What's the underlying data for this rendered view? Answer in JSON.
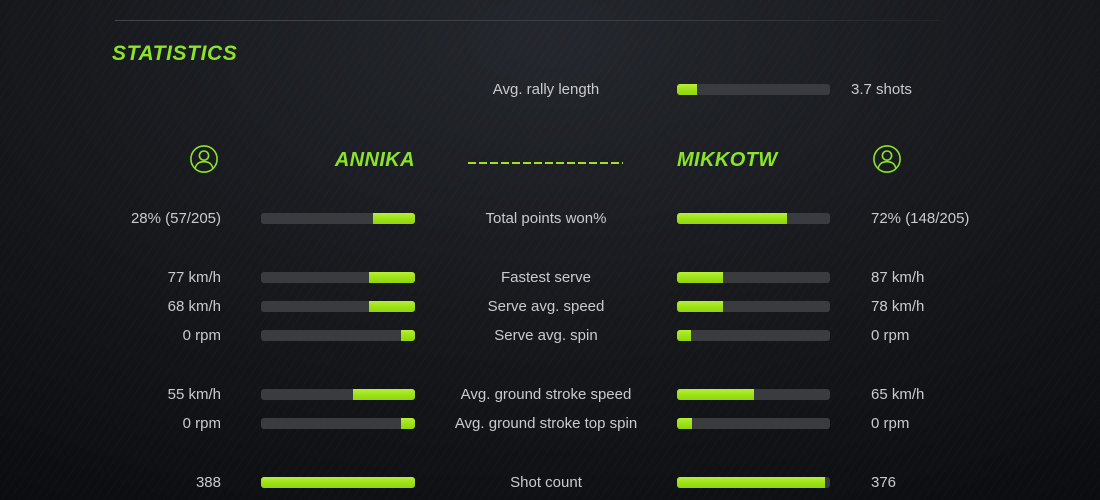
{
  "title": "STATISTICS",
  "colors": {
    "accent": "#a0e31c",
    "accent_title": "#8ae42a",
    "bar_track": "#393b3f",
    "text": "#c9cbce",
    "background_center": "#24272d",
    "background_edge": "#0a0c0f"
  },
  "rally": {
    "label": "Avg. rally length",
    "value": "3.7 shots",
    "fill_pct": 13
  },
  "players": {
    "left": {
      "name": "ANNIKA",
      "icon": "avatar-icon"
    },
    "right": {
      "name": "MIKKOTW",
      "icon": "avatar-icon"
    }
  },
  "stats": [
    {
      "label": "Total points won%",
      "left_value": "28% (57/205)",
      "right_value": "72% (148/205)",
      "left_fill_pct": 27,
      "right_fill_pct": 72
    },
    {
      "label": "Fastest serve",
      "left_value": "77 km/h",
      "right_value": "87 km/h",
      "left_fill_pct": 30,
      "right_fill_pct": 30
    },
    {
      "label": "Serve avg. speed",
      "left_value": "68 km/h",
      "right_value": "78 km/h",
      "left_fill_pct": 30,
      "right_fill_pct": 30
    },
    {
      "label": "Serve avg. spin",
      "left_value": "0 rpm",
      "right_value": "0 rpm",
      "left_fill_pct": 9,
      "right_fill_pct": 9
    },
    {
      "label": "Avg. ground stroke speed",
      "left_value": "55 km/h",
      "right_value": "65 km/h",
      "left_fill_pct": 40,
      "right_fill_pct": 50
    },
    {
      "label": "Avg. ground stroke top spin",
      "left_value": "0 rpm",
      "right_value": "0 rpm",
      "left_fill_pct": 9,
      "right_fill_pct": 10
    },
    {
      "label": "Shot count",
      "left_value": "388",
      "right_value": "376",
      "left_fill_pct": 100,
      "right_fill_pct": 97
    }
  ]
}
